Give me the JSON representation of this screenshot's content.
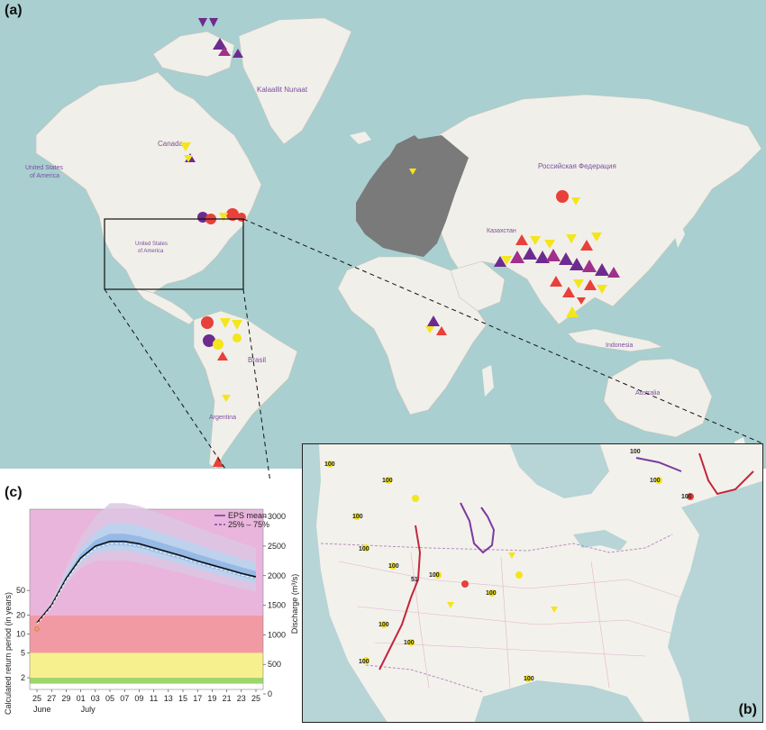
{
  "panels": {
    "a": "(a)",
    "b": "(b)",
    "c": "(c)"
  },
  "map_labels": {
    "greenland": "Kalaallit Nunaat",
    "canada": "Canada",
    "usa_line1": "United States",
    "usa_line2": "of America",
    "usa_inner_line1": "United States",
    "usa_inner_line2": "of America",
    "russia": "Российская Федерация",
    "kazakhstan": "Казахстан",
    "brasil": "Brasil",
    "argentina": "Argentina",
    "indonesia": "Indonesia",
    "australia": "Australia"
  },
  "colors": {
    "ocean": "#a9cfd0",
    "land": "#f1efe9",
    "europe_masked": "#7a7a7a",
    "marker_purple": "#6d2b8f",
    "marker_red": "#e8403a",
    "marker_yellow": "#f4e51c",
    "marker_magenta": "#a0308a",
    "band_pink": "#e9b5dc",
    "band_red": "#f19aa4",
    "band_yellow": "#f7f08e",
    "band_green": "#9fd66c"
  },
  "inset_b": {
    "return_period_label": "100",
    "extra_label": "51"
  },
  "chart_data": {
    "type": "line",
    "title": "",
    "xlabel": "",
    "ylabel": "Calculated return period (in years)",
    "y2label": "Discharge (m³/s)",
    "legend": [
      "EPS mean",
      "25% – 75%"
    ],
    "legend_position": "top-right",
    "x_ticks": [
      "25",
      "27",
      "29",
      "01",
      "03",
      "05",
      "07",
      "09",
      "11",
      "13",
      "15",
      "17",
      "19",
      "21",
      "23",
      "25"
    ],
    "month_labels": [
      "June",
      "July"
    ],
    "y_left_ticks": [
      "2",
      "5",
      "10",
      "20",
      "50"
    ],
    "y_right_ticks": [
      "0",
      "500",
      "1000",
      "1500",
      "2000",
      "2500",
      "3000"
    ],
    "y_right_range": [
      0,
      3200
    ],
    "bands": [
      {
        "name": "pink",
        "from": 20,
        "to": 1000
      },
      {
        "name": "red",
        "from": 5,
        "to": 20
      },
      {
        "name": "yellow",
        "from": 2,
        "to": 5
      },
      {
        "name": "green",
        "from": 1.6,
        "to": 2
      }
    ],
    "series": [
      {
        "name": "EPS mean",
        "discharge": [
          [
            0,
            1200
          ],
          [
            2,
            1500
          ],
          [
            4,
            1950
          ],
          [
            6,
            2300
          ],
          [
            8,
            2500
          ],
          [
            10,
            2580
          ],
          [
            12,
            2580
          ],
          [
            14,
            2540
          ],
          [
            16,
            2470
          ],
          [
            18,
            2400
          ],
          [
            20,
            2330
          ],
          [
            22,
            2250
          ],
          [
            24,
            2180
          ],
          [
            26,
            2110
          ],
          [
            28,
            2040
          ],
          [
            30,
            1980
          ]
        ]
      }
    ],
    "observed_point": {
      "x": 0,
      "discharge": 1100
    }
  }
}
